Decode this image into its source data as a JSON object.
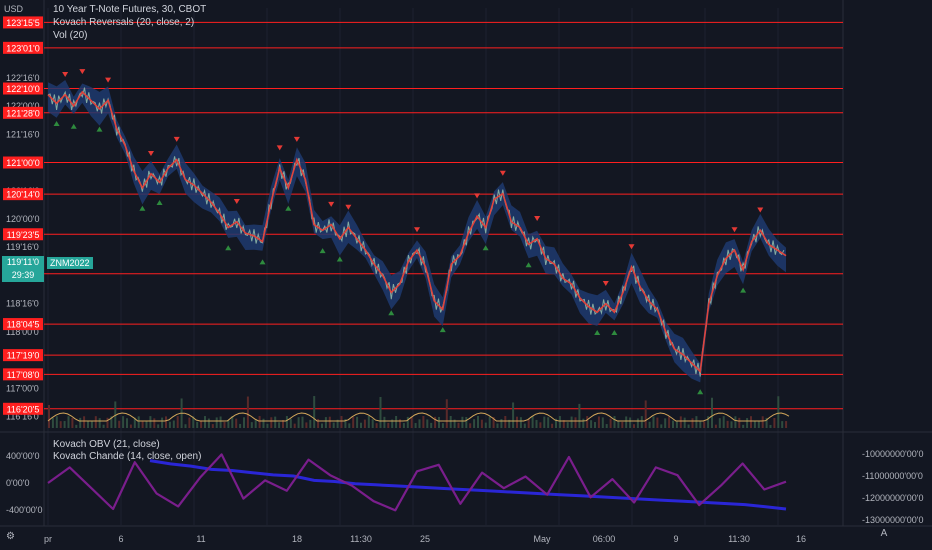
{
  "header": {
    "currency": "USD",
    "symbol_title": "10 Year T-Note Futures, 30, CBOT",
    "indicators": [
      "Kovach Reversals (20, close, 2)",
      "Vol (20)"
    ]
  },
  "price_tag": {
    "symbol": "ZNM2022",
    "price": "119'11'0",
    "countdown": "29:39"
  },
  "lower_pane": {
    "indicators": [
      "Kovach OBV (21, close)",
      "Kovach Chande (14, close, open)"
    ],
    "left_ticks": [
      "400'00'0",
      "0'00'0",
      "-400'00'0"
    ],
    "right_ticks": [
      "-10000000'00'0",
      "-11000000'00'0",
      "-12000000'00'0",
      "-13000000'00'0"
    ]
  },
  "colors": {
    "background": "#131722",
    "level_line": "#ff1f1f",
    "candles_band": "#1e3a6e",
    "obv": "#2a26d6",
    "chande": "#7a1e8c",
    "volume_line": "#d2a65a",
    "price_tag": "#26a69a"
  },
  "chart_data": {
    "type": "line",
    "x_tick_labels": [
      "pr",
      "6",
      "11",
      "18",
      "11:30",
      "25",
      "May",
      "06:00",
      "9",
      "11:30",
      "16"
    ],
    "y_tick_labels": [
      "122'16'0",
      "122'00'0",
      "121'16'0",
      "121'00'0",
      "120'16'0",
      "120'00'0",
      "119'16'0",
      "118'16'0",
      "118'00'0",
      "117'00'0",
      "116'16'0"
    ],
    "levels": [
      {
        "label": "123'15'5",
        "value": 123.48
      },
      {
        "label": "123'01'0",
        "value": 123.03
      },
      {
        "label": "122'10'0",
        "value": 122.31
      },
      {
        "label": "121'28'0",
        "value": 121.88
      },
      {
        "label": "121'00'0",
        "value": 121.0
      },
      {
        "label": "120'14'0",
        "value": 120.44
      },
      {
        "label": "119'23'5",
        "value": 119.73
      },
      {
        "label": "119'01'0",
        "value": 119.03
      },
      {
        "label": "118'04'5",
        "value": 118.14
      },
      {
        "label": "117'19'0",
        "value": 117.59
      },
      {
        "label": "117'08'0",
        "value": 117.25
      },
      {
        "label": "116'20'5",
        "value": 116.64
      }
    ],
    "series": [
      {
        "values": [
          122.2,
          122.05,
          122.2,
          122.0,
          122.25,
          122.1,
          121.95,
          122.1,
          121.6,
          121.3,
          120.85,
          120.55,
          120.8,
          120.65,
          120.9,
          121.05,
          120.7,
          120.6,
          120.45,
          120.3,
          120.1,
          119.85,
          119.95,
          119.75,
          119.7,
          119.6,
          120.3,
          120.9,
          120.55,
          121.05,
          120.7,
          119.9,
          119.8,
          119.9,
          119.65,
          119.85,
          119.65,
          119.45,
          119.2,
          119.0,
          118.7,
          118.85,
          119.25,
          119.45,
          119.15,
          118.55,
          118.4,
          119.2,
          119.35,
          119.75,
          120.05,
          119.85,
          120.35,
          120.45,
          119.95,
          119.85,
          119.55,
          119.65,
          119.3,
          119.2,
          118.95,
          118.85,
          118.6,
          118.45,
          118.35,
          118.5,
          118.35,
          118.7,
          119.15,
          118.8,
          118.55,
          118.4,
          118.0,
          117.7,
          117.6,
          117.45,
          117.3,
          118.5,
          119.0,
          119.3,
          119.45,
          119.1,
          119.6,
          119.8,
          119.55,
          119.45,
          119.35
        ]
      }
    ],
    "obv_values": [
      -10.3,
      -10.45,
      -10.55,
      -10.7,
      -10.75,
      -10.85,
      -10.95,
      -11.0,
      -11.2,
      -11.25,
      -11.35,
      -11.4,
      -11.45,
      -11.5,
      -11.55,
      -11.6,
      -11.65,
      -11.7,
      -11.75,
      -11.8,
      -11.85,
      -11.9,
      -11.95,
      -12.0,
      -12.05,
      -12.1,
      -12.15,
      -12.2,
      -12.25,
      -12.3,
      -12.4,
      -12.5
    ],
    "chande_values": [
      0.0,
      1.2,
      -0.4,
      -2.0,
      1.6,
      -0.8,
      -1.8,
      0.4,
      2.2,
      -1.2,
      0.2,
      -0.6,
      1.8,
      0.6,
      -0.2,
      -1.4,
      -2.1,
      0.9,
      1.4,
      -1.6,
      0.8,
      -0.4,
      0.5,
      -0.9,
      2.0,
      -1.1,
      0.3,
      -1.5,
      1.2,
      0.6,
      -1.7,
      -0.2,
      1.5,
      -0.5,
      0.1
    ],
    "ylim": [
      116.3,
      123.7
    ]
  }
}
